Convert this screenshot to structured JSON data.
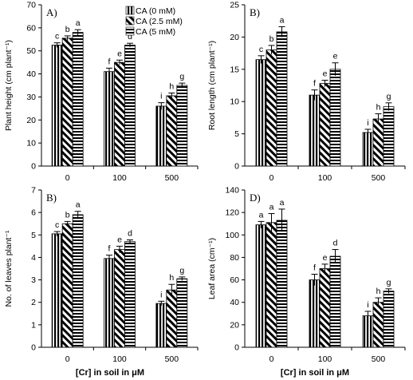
{
  "legend": [
    {
      "label": "CA (0 mM)",
      "pattern": "vertical-stripes"
    },
    {
      "label": "CA (2.5 mM)",
      "pattern": "diagonal-stripes"
    },
    {
      "label": "CA (5 mM)",
      "pattern": "horizontal-stripes"
    }
  ],
  "x_axis_title": "[Cr] in soil in μM",
  "chart_data": [
    {
      "type": "bar",
      "panel_label": "A)",
      "ylabel": "Plant height (cm plant⁻¹)",
      "ylim": [
        0,
        70
      ],
      "yticks": [
        0,
        10,
        20,
        30,
        40,
        50,
        60,
        70
      ],
      "categories": [
        "0",
        "100",
        "500"
      ],
      "series": [
        {
          "name": "CA (0 mM)",
          "values": [
            52.5,
            41,
            26
          ],
          "errors": [
            1,
            1.5,
            1.5
          ],
          "letters": [
            "c",
            "f",
            "i"
          ]
        },
        {
          "name": "CA (2.5 mM)",
          "values": [
            55.5,
            45,
            30.5
          ],
          "errors": [
            1,
            1,
            1.2
          ],
          "letters": [
            "b",
            "e",
            "h"
          ]
        },
        {
          "name": "CA (5 mM)",
          "values": [
            58,
            52.5,
            35
          ],
          "errors": [
            1.2,
            0.8,
            1
          ],
          "letters": [
            "a",
            "d",
            "g"
          ]
        }
      ]
    },
    {
      "type": "bar",
      "panel_label": "B)",
      "ylabel": "Root length (cm plant⁻¹)",
      "ylim": [
        0,
        25
      ],
      "yticks": [
        0,
        5,
        10,
        15,
        20,
        25
      ],
      "categories": [
        "0",
        "100",
        "500"
      ],
      "series": [
        {
          "name": "CA (0 mM)",
          "values": [
            16.5,
            11,
            5.2
          ],
          "errors": [
            0.6,
            0.8,
            0.5
          ],
          "letters": [
            "c",
            "f",
            "i"
          ]
        },
        {
          "name": "CA (2.5 mM)",
          "values": [
            18,
            12.8,
            7.3
          ],
          "errors": [
            0.7,
            0.5,
            0.8
          ],
          "letters": [
            "b",
            "e",
            "h"
          ]
        },
        {
          "name": "CA (5 mM)",
          "values": [
            20.8,
            15,
            9.2
          ],
          "errors": [
            0.8,
            1,
            0.6
          ],
          "letters": [
            "a",
            "e",
            "g"
          ]
        }
      ]
    },
    {
      "type": "bar",
      "panel_label": "B)",
      "ylabel": "No. of leaves plant⁻¹",
      "ylim": [
        0,
        7
      ],
      "yticks": [
        0,
        1,
        2,
        3,
        4,
        5,
        6,
        7
      ],
      "categories": [
        "0",
        "100",
        "500"
      ],
      "series": [
        {
          "name": "CA (0 mM)",
          "values": [
            5.05,
            3.95,
            1.95
          ],
          "errors": [
            0.1,
            0.15,
            0.1
          ],
          "letters": [
            "c",
            "f",
            "i"
          ]
        },
        {
          "name": "CA (2.5 mM)",
          "values": [
            5.5,
            4.35,
            2.55
          ],
          "errors": [
            0.1,
            0.15,
            0.25
          ],
          "letters": [
            "b",
            "e",
            "h"
          ]
        },
        {
          "name": "CA (5 mM)",
          "values": [
            5.9,
            4.7,
            3.05
          ],
          "errors": [
            0.15,
            0.08,
            0.08
          ],
          "letters": [
            "a",
            "d",
            "g"
          ]
        }
      ]
    },
    {
      "type": "bar",
      "panel_label": "D)",
      "ylabel": "Leaf area (cm⁻¹)",
      "ylim": [
        0,
        140
      ],
      "yticks": [
        0,
        20,
        40,
        60,
        80,
        100,
        120,
        140
      ],
      "categories": [
        "0",
        "100",
        "500"
      ],
      "series": [
        {
          "name": "CA (0 mM)",
          "values": [
            109,
            60,
            28
          ],
          "errors": [
            3,
            5,
            4
          ],
          "letters": [
            "a",
            "f",
            "i"
          ]
        },
        {
          "name": "CA (2.5 mM)",
          "values": [
            111,
            70,
            40
          ],
          "errors": [
            8,
            4,
            4
          ],
          "letters": [
            "a",
            "e",
            "h"
          ]
        },
        {
          "name": "CA (5 mM)",
          "values": [
            113,
            81,
            50
          ],
          "errors": [
            10,
            6,
            2
          ],
          "letters": [
            "a",
            "d",
            "g"
          ]
        }
      ]
    }
  ]
}
